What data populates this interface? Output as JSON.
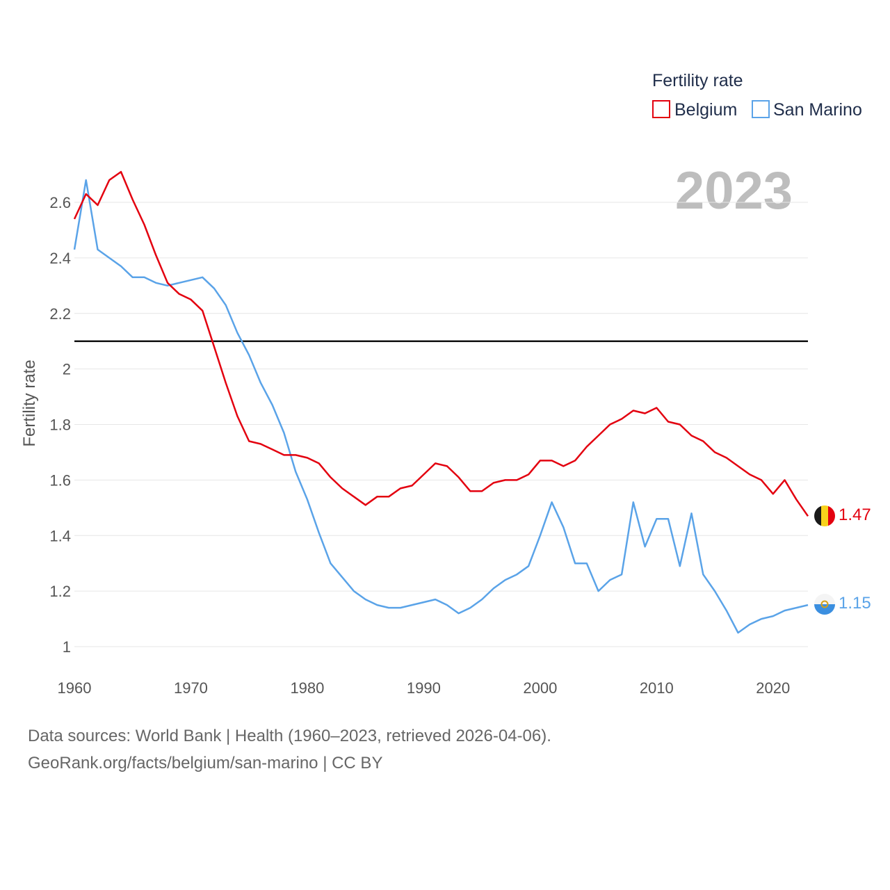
{
  "chart_data": {
    "type": "line",
    "title": "Fertility rate",
    "current_year": "2023",
    "ylabel": "Fertility rate",
    "xlabel": "",
    "xlim": [
      1960,
      2023
    ],
    "ylim": [
      0.95,
      2.78
    ],
    "x_ticks": [
      "1960",
      "1970",
      "1980",
      "1990",
      "2000",
      "2010",
      "2020"
    ],
    "y_ticks": [
      "1",
      "1.2",
      "1.4",
      "1.6",
      "1.8",
      "2",
      "2.2",
      "2.4",
      "2.6"
    ],
    "reference_line": 2.1,
    "x": [
      1960,
      1961,
      1962,
      1963,
      1964,
      1965,
      1966,
      1967,
      1968,
      1969,
      1970,
      1971,
      1972,
      1973,
      1974,
      1975,
      1976,
      1977,
      1978,
      1979,
      1980,
      1981,
      1982,
      1983,
      1984,
      1985,
      1986,
      1987,
      1988,
      1989,
      1990,
      1991,
      1992,
      1993,
      1994,
      1995,
      1996,
      1997,
      1998,
      1999,
      2000,
      2001,
      2002,
      2003,
      2004,
      2005,
      2006,
      2007,
      2008,
      2009,
      2010,
      2011,
      2012,
      2013,
      2014,
      2015,
      2016,
      2017,
      2018,
      2019,
      2020,
      2021,
      2022,
      2023
    ],
    "series": [
      {
        "name": "Belgium",
        "color": "#e3000f",
        "end_label": "1.47",
        "values": [
          2.54,
          2.63,
          2.59,
          2.68,
          2.71,
          2.61,
          2.52,
          2.41,
          2.31,
          2.27,
          2.25,
          2.21,
          2.08,
          1.95,
          1.83,
          1.74,
          1.73,
          1.71,
          1.69,
          1.69,
          1.68,
          1.66,
          1.61,
          1.57,
          1.54,
          1.51,
          1.54,
          1.54,
          1.57,
          1.58,
          1.62,
          1.66,
          1.65,
          1.61,
          1.56,
          1.56,
          1.59,
          1.6,
          1.6,
          1.62,
          1.67,
          1.67,
          1.65,
          1.67,
          1.72,
          1.76,
          1.8,
          1.82,
          1.85,
          1.84,
          1.86,
          1.81,
          1.8,
          1.76,
          1.74,
          1.7,
          1.68,
          1.65,
          1.62,
          1.6,
          1.55,
          1.6,
          1.53,
          1.47
        ]
      },
      {
        "name": "San Marino",
        "color": "#5aa3e8",
        "end_label": "1.15",
        "values": [
          2.43,
          2.68,
          2.43,
          2.4,
          2.37,
          2.33,
          2.33,
          2.31,
          2.3,
          2.31,
          2.32,
          2.33,
          2.29,
          2.23,
          2.13,
          2.05,
          1.95,
          1.87,
          1.77,
          1.63,
          1.53,
          1.41,
          1.3,
          1.25,
          1.2,
          1.17,
          1.15,
          1.14,
          1.14,
          1.15,
          1.16,
          1.17,
          1.15,
          1.12,
          1.14,
          1.17,
          1.21,
          1.24,
          1.26,
          1.29,
          1.4,
          1.52,
          1.43,
          1.3,
          1.3,
          1.2,
          1.24,
          1.26,
          1.52,
          1.36,
          1.46,
          1.46,
          1.29,
          1.48,
          1.26,
          1.2,
          1.13,
          1.05,
          1.08,
          1.1,
          1.11,
          1.13,
          1.14,
          1.15
        ]
      }
    ]
  },
  "footer": {
    "source_line": "Data sources: World Bank | Health (1960–2023, retrieved 2026-04-06).",
    "license_line": "GeoRank.org/facts/belgium/san-marino | CC BY"
  },
  "icons": {
    "belgium_flag": "belgium-flag-icon",
    "san_marino_flag": "san-marino-flag-icon"
  }
}
